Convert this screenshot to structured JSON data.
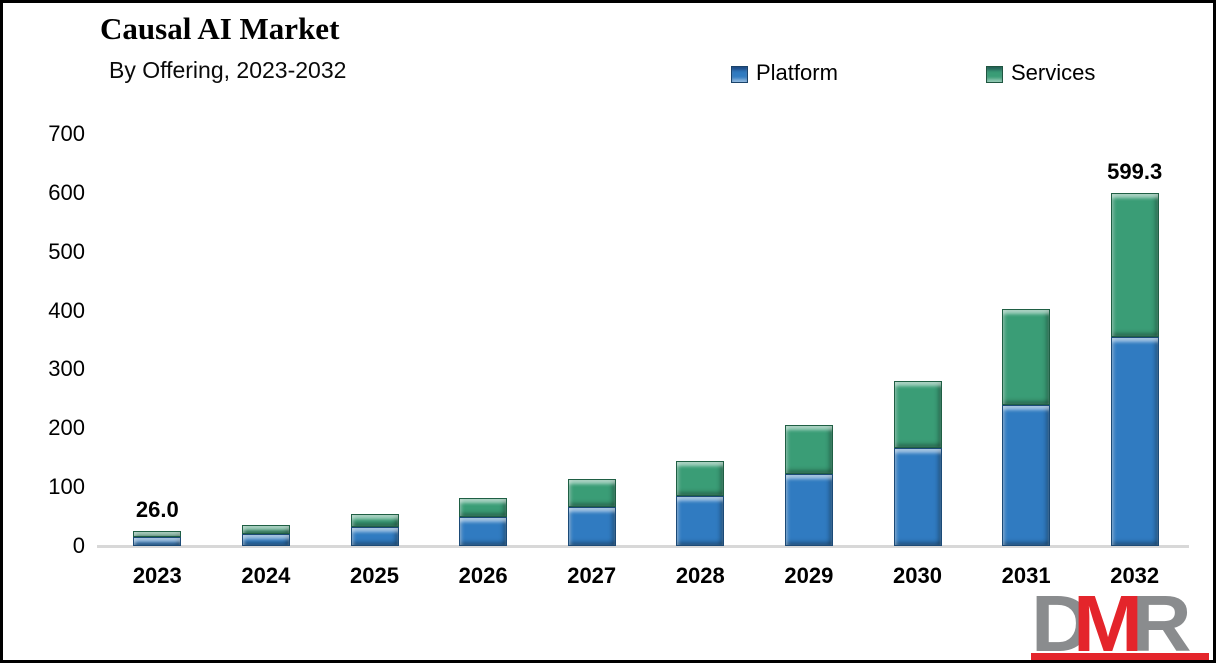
{
  "header": {
    "title": "Causal AI Market",
    "subtitle": "By Offering, 2023-2032"
  },
  "chart_data": {
    "type": "bar",
    "stacked": true,
    "title": "Causal AI Market",
    "subtitle": "By Offering, 2023-2032",
    "categories": [
      "2023",
      "2024",
      "2025",
      "2026",
      "2027",
      "2028",
      "2029",
      "2030",
      "2031",
      "2032"
    ],
    "series": [
      {
        "name": "Platform",
        "color": "#307BC1",
        "border_color": "#1B4A77",
        "values": [
          15.5,
          21.0,
          32.5,
          48.5,
          67.0,
          85.5,
          121.5,
          166.5,
          239.0,
          355.4
        ]
      },
      {
        "name": "Services",
        "color": "#3A9D76",
        "border_color": "#1F5F44",
        "values": [
          10.5,
          14.5,
          22.5,
          33.5,
          46.0,
          58.5,
          83.5,
          114.5,
          164.0,
          243.9
        ]
      }
    ],
    "totals": [
      26.0,
      35.5,
      55.0,
      82.0,
      113.0,
      144.0,
      205.0,
      281.0,
      403.0,
      599.3
    ],
    "annotations": [
      {
        "category_index": 0,
        "text": "26.0"
      },
      {
        "category_index": 9,
        "text": "599.3"
      }
    ],
    "xlabel": "",
    "ylabel": "",
    "ylim": [
      0,
      700
    ],
    "yticks": [
      0,
      100,
      200,
      300,
      400,
      500,
      600,
      700
    ],
    "grid": false,
    "legend_position": "top"
  },
  "colors": {
    "axis_line": "#D8D8D8",
    "text": "#000000",
    "frame_border": "#000000",
    "logo_gray": "#8A8C8E",
    "logo_red": "#E4252B"
  },
  "logo": {
    "text": "DMR",
    "letters": [
      {
        "char": "D",
        "color": "#8A8C8E"
      },
      {
        "char": "M",
        "color": "#E4252B"
      },
      {
        "char": "R",
        "color": "#8A8C8E"
      }
    ]
  }
}
